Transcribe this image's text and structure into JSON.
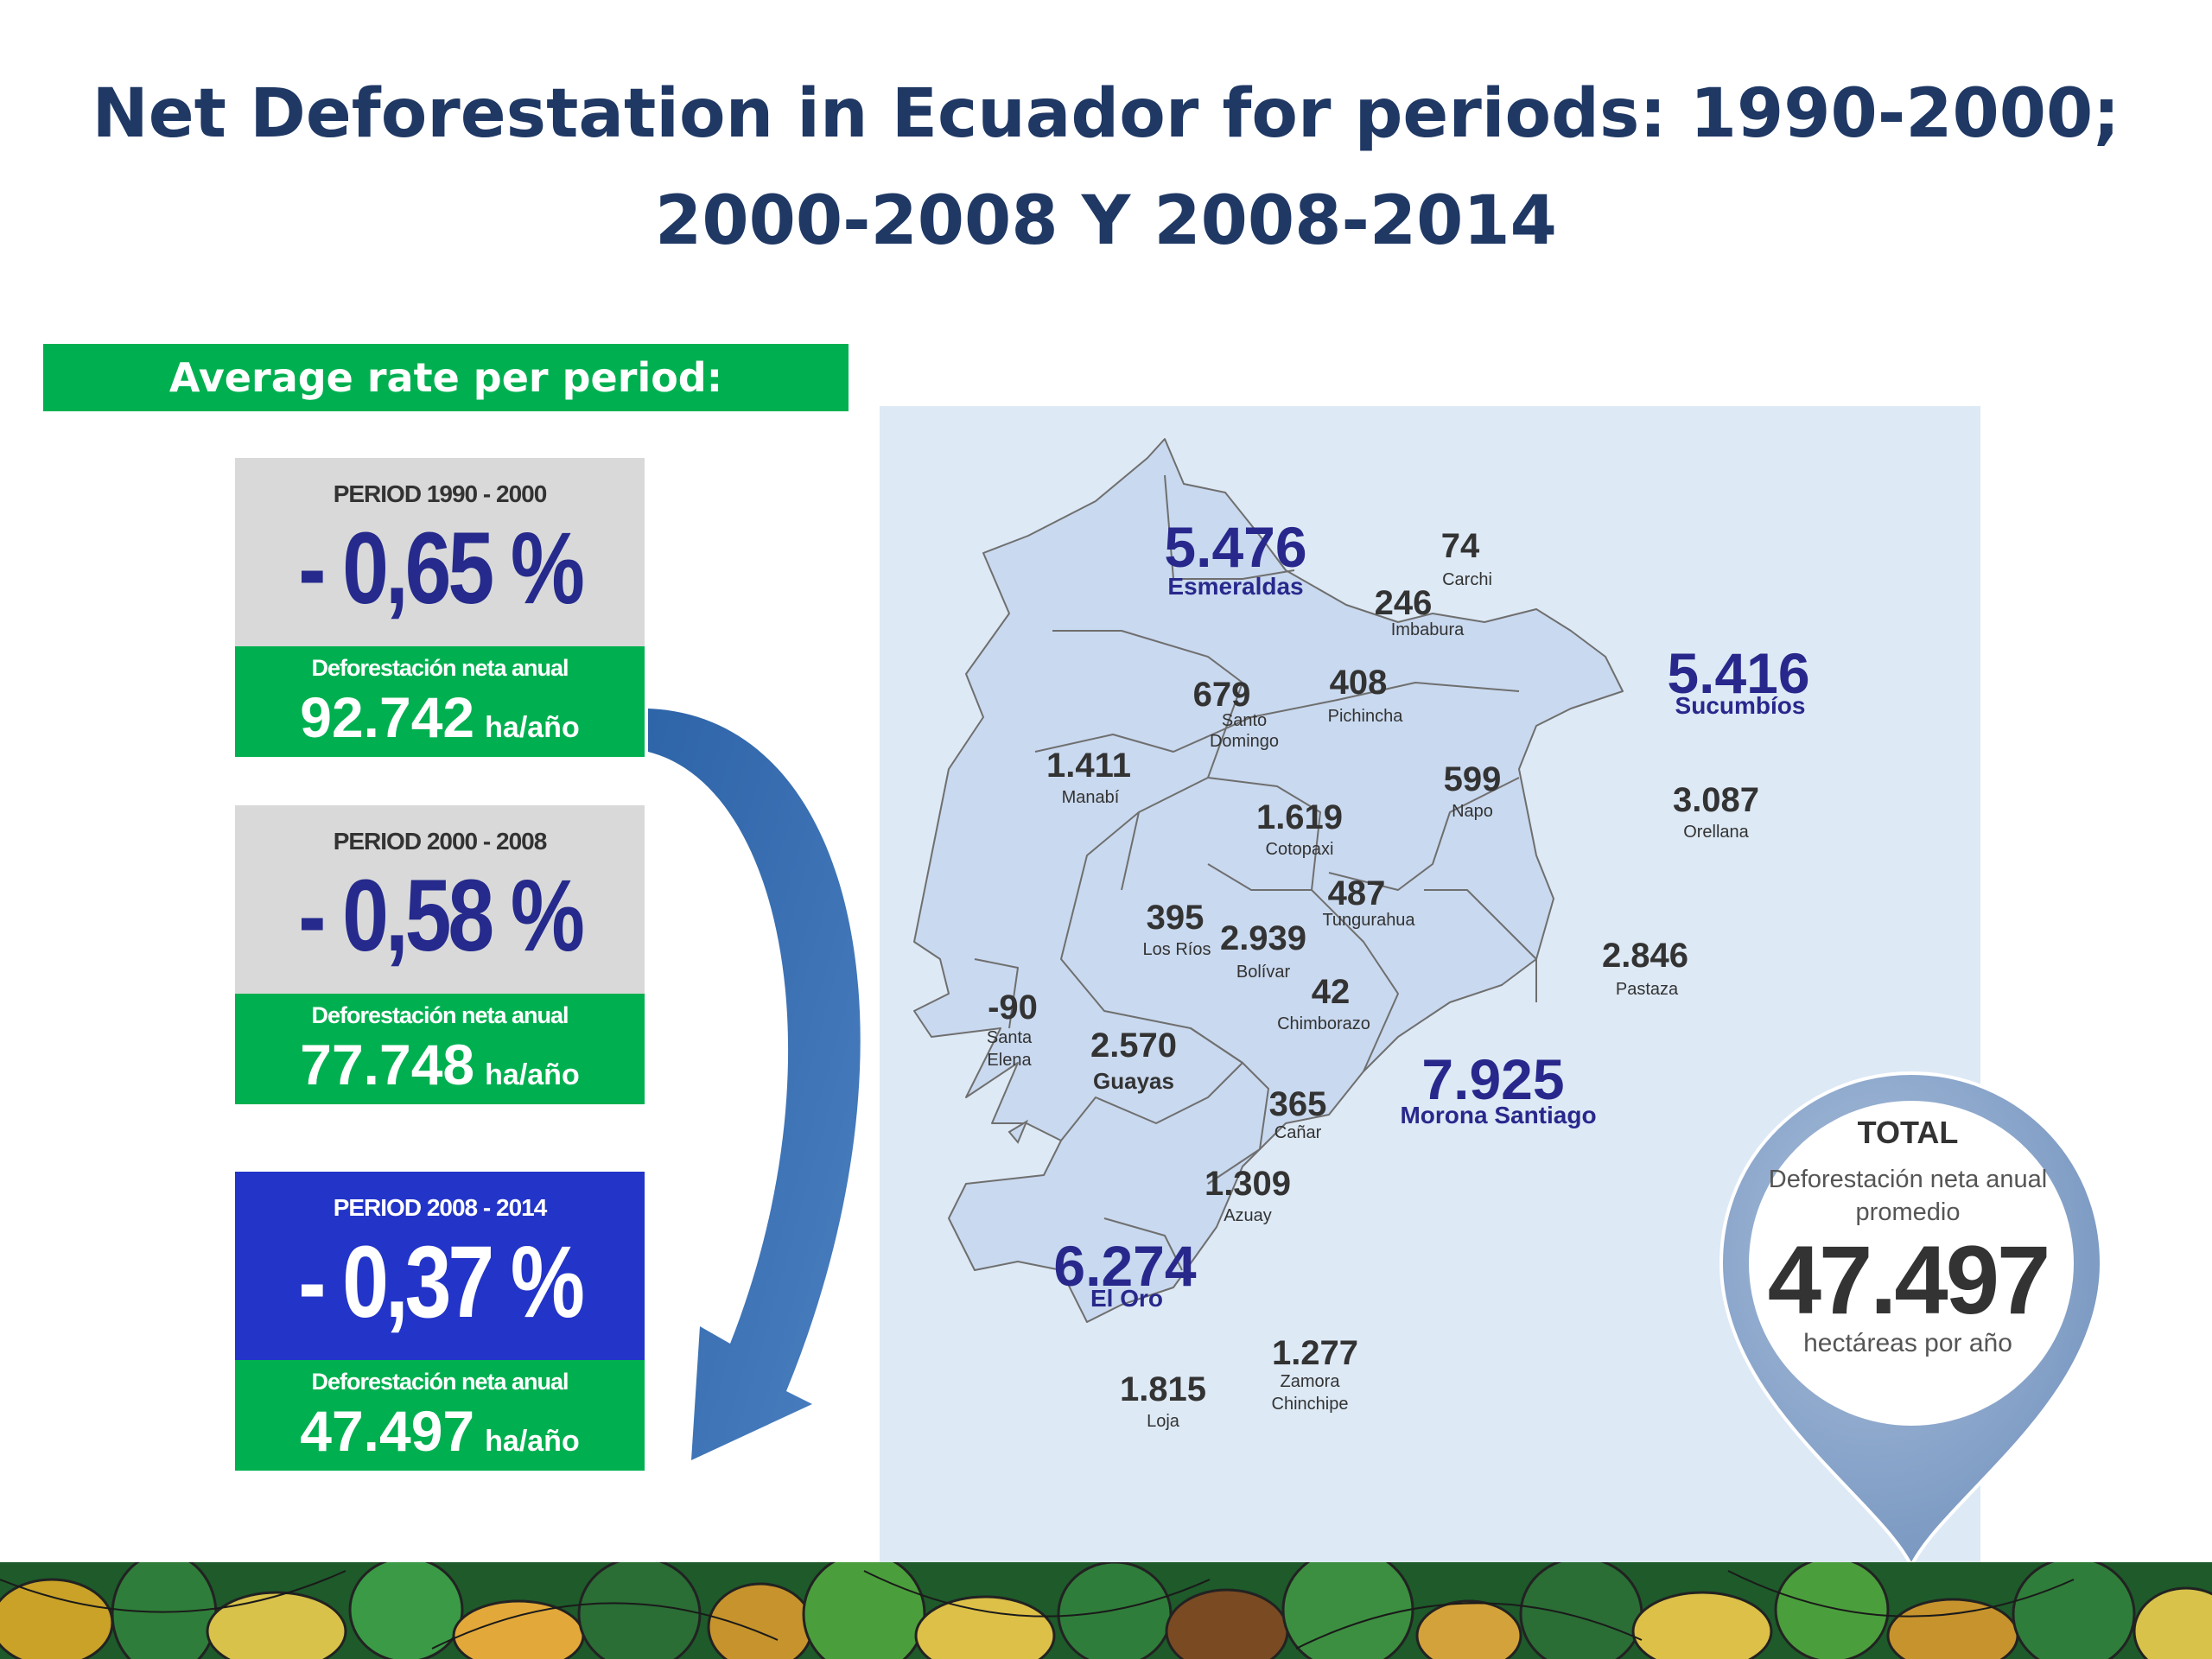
{
  "title": {
    "line1": "Net Deforestation in Ecuador for periods: 1990-2000;",
    "line2": "2000-2008 Y 2008-2014"
  },
  "avg_banner": "Average rate per period:",
  "periods": [
    {
      "label": "PERIOD 1990 - 2000",
      "rate": "- 0,65 %",
      "caption": "Deforestación neta anual",
      "value": "92.742",
      "unit": "ha/año"
    },
    {
      "label": "PERIOD 2000 - 2008",
      "rate": "- 0,58 %",
      "caption": "Deforestación neta anual",
      "value": "77.748",
      "unit": "ha/año"
    },
    {
      "label": "PERIOD 2008 - 2014",
      "rate": "- 0,37 %",
      "caption": "Deforestación neta anual",
      "value": "47.497",
      "unit": "ha/año"
    }
  ],
  "provinces": [
    {
      "name": "Esmeraldas",
      "value": "5.476"
    },
    {
      "name": "Carchi",
      "value": "74"
    },
    {
      "name": "Imbabura",
      "value": "246"
    },
    {
      "name": "Sucumbíos",
      "value": "5.416"
    },
    {
      "name": "Santo Domingo",
      "value": "679"
    },
    {
      "name": "Pichincha",
      "value": "408"
    },
    {
      "name": "Manabí",
      "value": "1.411"
    },
    {
      "name": "Napo",
      "value": "599"
    },
    {
      "name": "Orellana",
      "value": "3.087"
    },
    {
      "name": "Cotopaxi",
      "value": "1.619"
    },
    {
      "name": "Tungurahua",
      "value": "487"
    },
    {
      "name": "Los Ríos",
      "value": "395"
    },
    {
      "name": "Bolívar",
      "value": "2.939"
    },
    {
      "name": "Pastaza",
      "value": "2.846"
    },
    {
      "name": "Chimborazo",
      "value": "42"
    },
    {
      "name": "Santa Elena",
      "value": "-90"
    },
    {
      "name": "Guayas",
      "value": "2.570"
    },
    {
      "name": "Morona Santiago",
      "value": "7.925"
    },
    {
      "name": "Cañar",
      "value": "365"
    },
    {
      "name": "Azuay",
      "value": "1.309"
    },
    {
      "name": "El Oro",
      "value": "6.274"
    },
    {
      "name": "Zamora Chinchipe",
      "value": "1.277"
    },
    {
      "name": "Loja",
      "value": "1.815"
    }
  ],
  "total": {
    "label": "TOTAL",
    "caption": "Deforestación neta anual promedio",
    "value": "47.497",
    "unit": "hectáreas por año"
  },
  "colors": {
    "title": "#1f3864",
    "green": "#00b050",
    "grey": "#d9d9d9",
    "blue_card": "#2334c8",
    "rate_text": "#252a8c",
    "map_fill": "#c9d9ef",
    "map_bg": "#dde9f5",
    "arrow": "#2e64a8",
    "pin": "#8aa6cc"
  }
}
